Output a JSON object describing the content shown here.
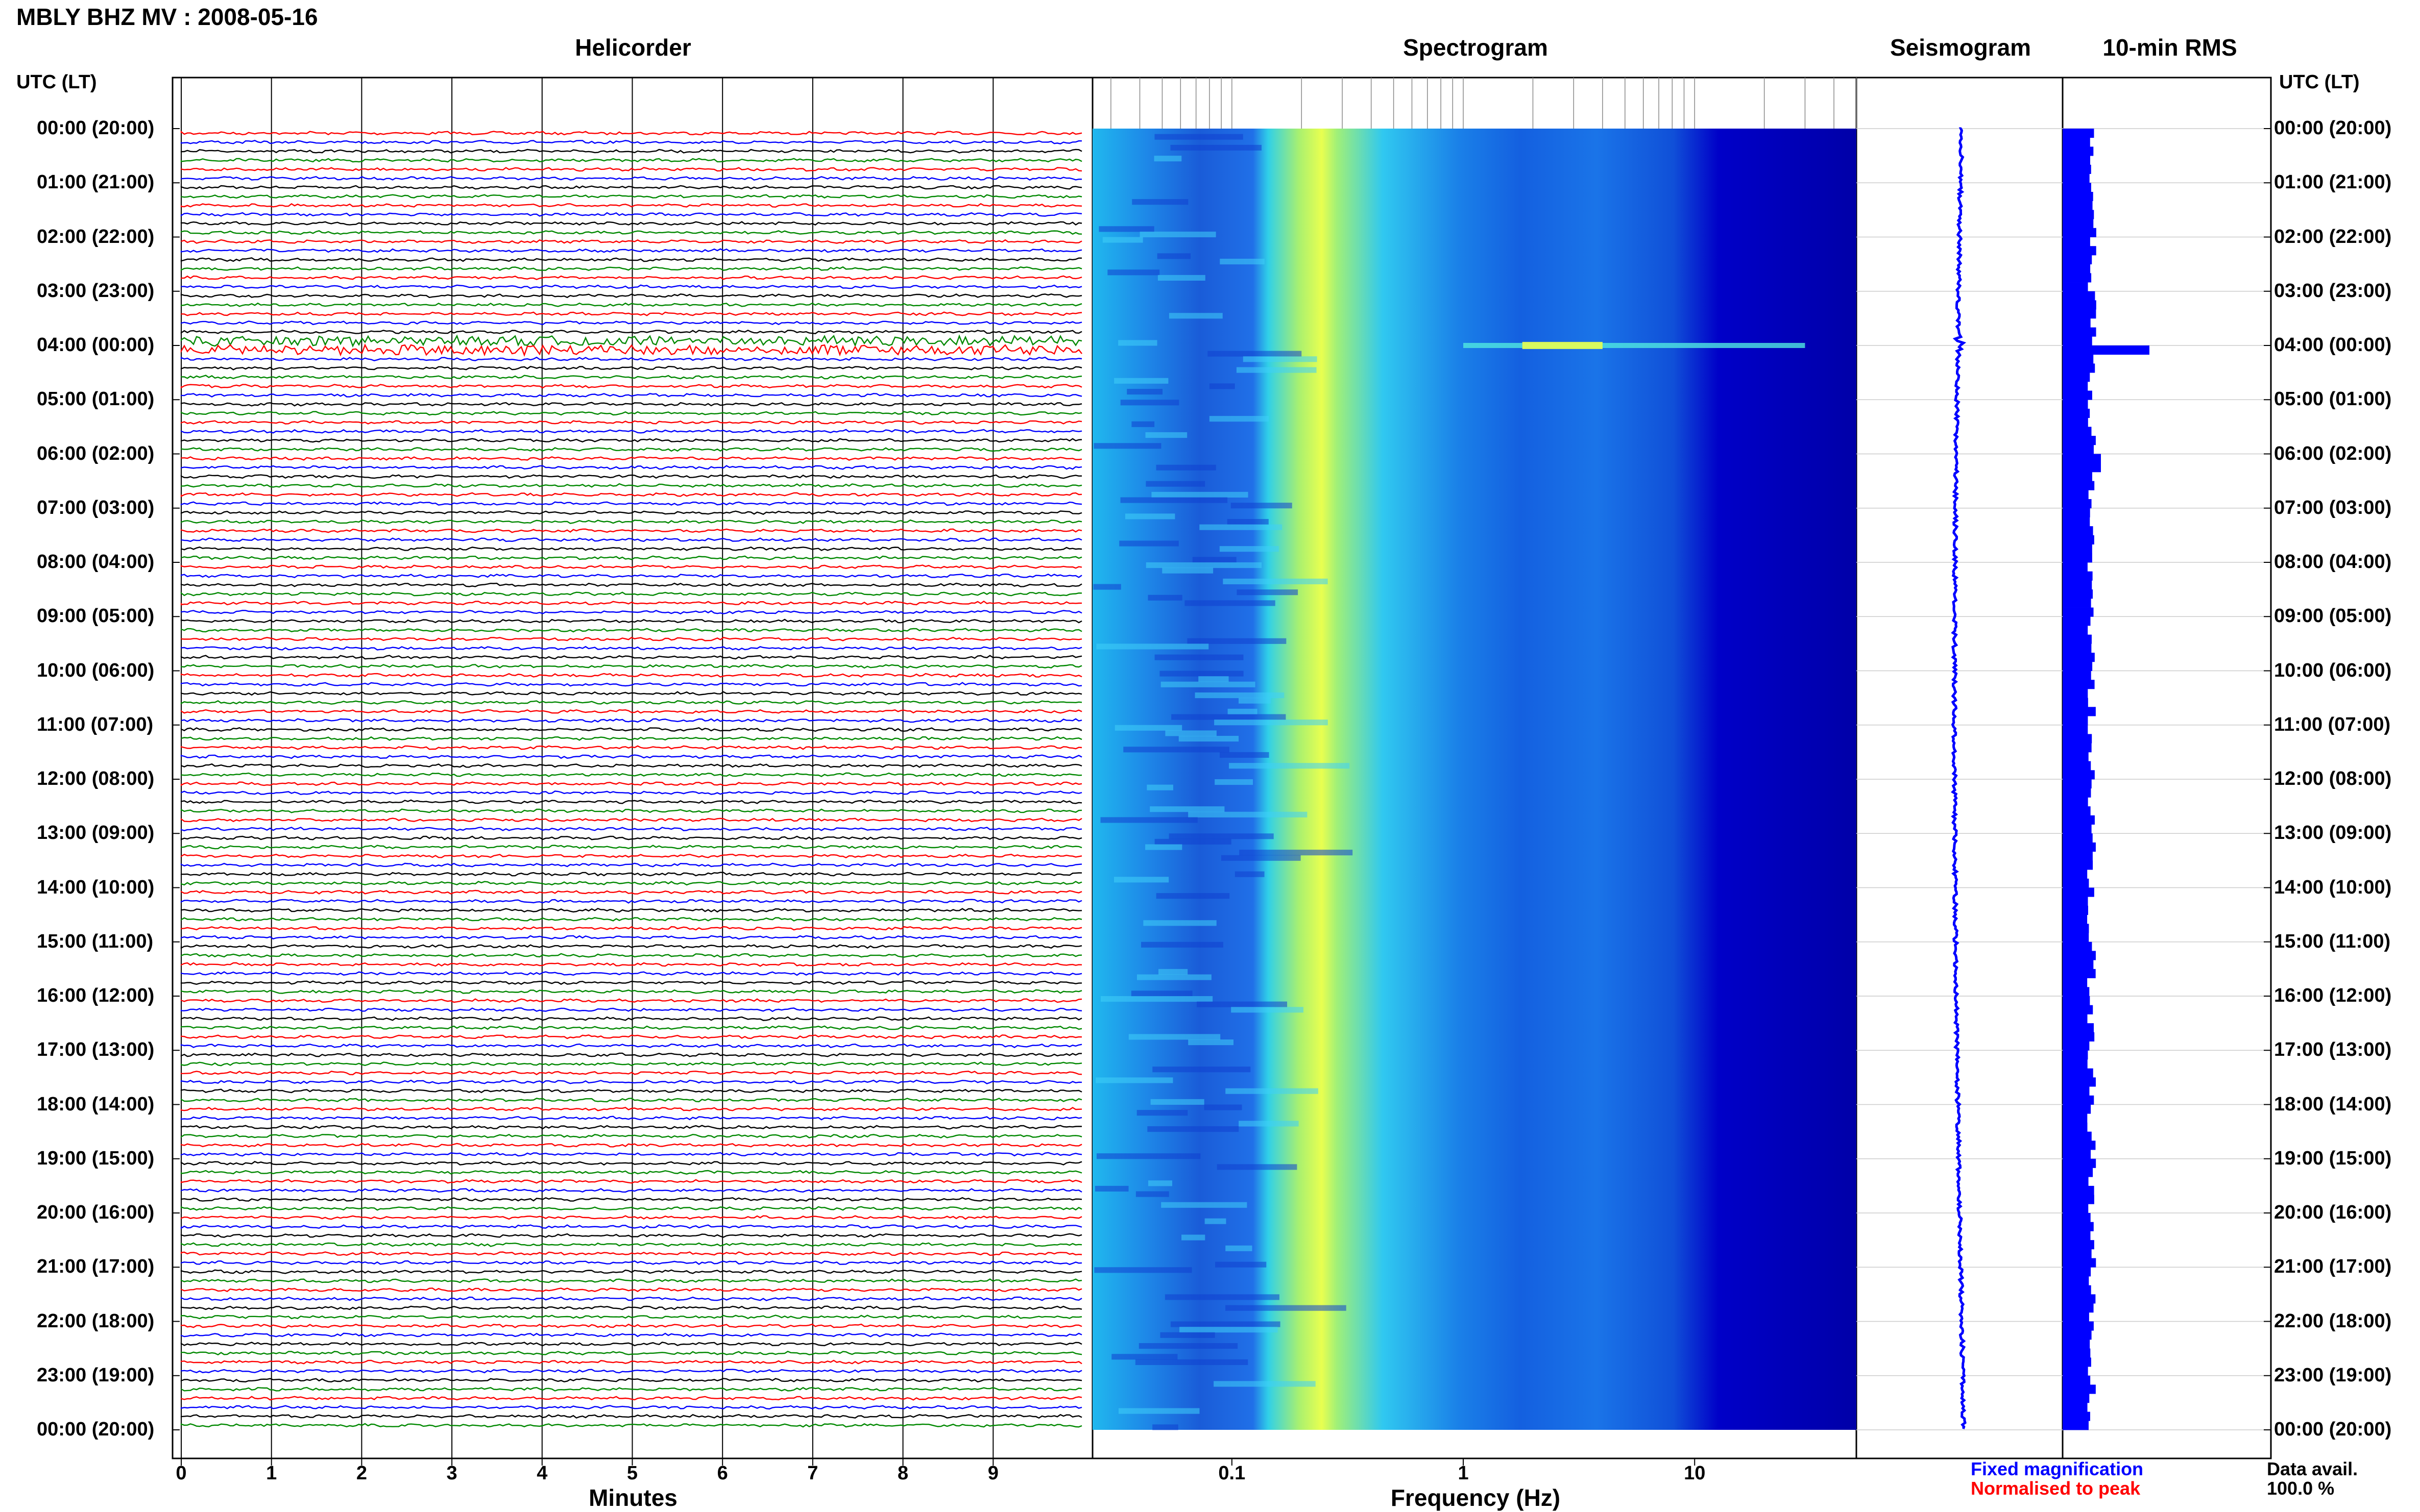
{
  "header": {
    "title": "MBLY BHZ MV : 2008-05-16"
  },
  "sections": {
    "helicorder": "Helicorder",
    "spectrogram": "Spectrogram",
    "seismogram": "Seismogram",
    "rms": "10-min RMS"
  },
  "axis": {
    "left_head": "UTC (LT)",
    "right_head": "UTC (LT)",
    "helicorder_xlabel": "Minutes",
    "spectrogram_xlabel": "Frequency (Hz)"
  },
  "hour_labels": [
    "00:00 (20:00)",
    "01:00 (21:00)",
    "02:00 (22:00)",
    "03:00 (23:00)",
    "04:00 (00:00)",
    "05:00 (01:00)",
    "06:00 (02:00)",
    "07:00 (03:00)",
    "08:00 (04:00)",
    "09:00 (05:00)",
    "10:00 (06:00)",
    "11:00 (07:00)",
    "12:00 (08:00)",
    "13:00 (09:00)",
    "14:00 (10:00)",
    "15:00 (11:00)",
    "16:00 (12:00)",
    "17:00 (13:00)",
    "18:00 (14:00)",
    "19:00 (15:00)",
    "20:00 (16:00)",
    "21:00 (17:00)",
    "22:00 (18:00)",
    "23:00 (19:00)",
    "00:00 (20:00)"
  ],
  "legend": {
    "fixed": "Fixed magnification",
    "normalised": "Normalised to peak",
    "avail_label": "Data avail.",
    "avail_value": "100.0 %"
  },
  "colors": {
    "blue": "#0000ff",
    "red": "#ff0000",
    "green": "#008800",
    "black": "#000000",
    "spec_low": "#0000a0",
    "spec_mid": "#00c8ff",
    "spec_high": "#e8ff40"
  },
  "chart_data": {
    "type": "helicorder",
    "helicorder": {
      "xlabel": "Minutes",
      "x_ticks": [
        0,
        1,
        2,
        3,
        4,
        5,
        6,
        7,
        8,
        9
      ],
      "xlim": [
        0,
        10
      ],
      "hours": 24,
      "traces_per_hour": 6,
      "trace_colors": [
        "red",
        "blue",
        "black",
        "green"
      ]
    },
    "spectrogram": {
      "xlabel": "Frequency (Hz)",
      "x_scale": "log",
      "x_ticks": [
        "0.1",
        "1",
        "10"
      ],
      "x_tick_values": [
        0.1,
        1,
        10
      ],
      "xlim": [
        0.025,
        50
      ],
      "peak_band_hz": 0.25
    },
    "rms": {
      "interval_minutes": 10,
      "bars": 144,
      "peak_time_utc": "04:00"
    },
    "seismogram": {
      "peak_time_utc": "04:00"
    }
  }
}
